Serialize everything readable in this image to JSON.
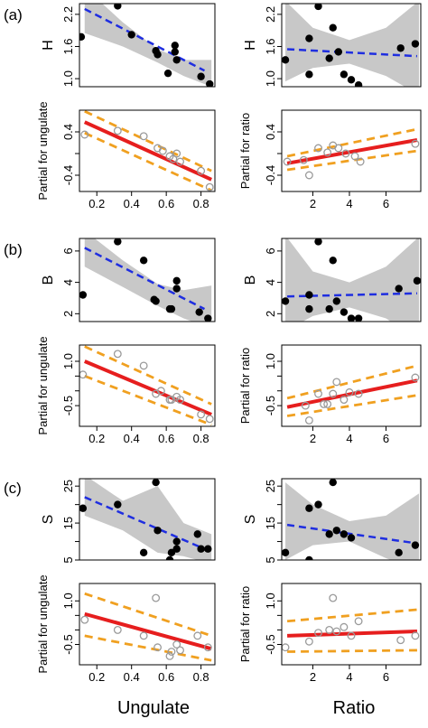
{
  "figure": {
    "panel_labels": [
      "(a)",
      "(b)",
      "(c)"
    ],
    "xlabels": [
      "Ungulate",
      "Ratio"
    ]
  },
  "chart_data": [
    {
      "type": "scatter",
      "panel": "(a)",
      "row": "top",
      "col": "ungulate",
      "ylabel": "H",
      "xlim": [
        0.1,
        0.88
      ],
      "ylim": [
        0.85,
        2.4
      ],
      "yticks": [
        1.0,
        1.6,
        2.2
      ],
      "ytick_labels": [
        "1.0",
        "1.6",
        "2.2"
      ],
      "points": [
        [
          0.11,
          1.78
        ],
        [
          0.32,
          2.36
        ],
        [
          0.4,
          1.82
        ],
        [
          0.54,
          1.52
        ],
        [
          0.55,
          1.45
        ],
        [
          0.61,
          1.1
        ],
        [
          0.65,
          1.62
        ],
        [
          0.65,
          1.5
        ],
        [
          0.66,
          1.35
        ],
        [
          0.8,
          1.04
        ],
        [
          0.85,
          0.9
        ]
      ],
      "fit": [
        [
          0.13,
          2.3
        ],
        [
          0.82,
          1.15
        ]
      ],
      "band_upper": [
        [
          0.13,
          2.7
        ],
        [
          0.35,
          2.05
        ],
        [
          0.55,
          1.55
        ],
        [
          0.7,
          1.35
        ],
        [
          0.86,
          1.35
        ]
      ],
      "band_lower": [
        [
          0.13,
          1.85
        ],
        [
          0.35,
          1.6
        ],
        [
          0.55,
          1.3
        ],
        [
          0.7,
          1.05
        ],
        [
          0.86,
          0.85
        ]
      ]
    },
    {
      "type": "scatter",
      "panel": "(a)",
      "row": "top",
      "col": "ratio",
      "ylabel": "H",
      "xlim": [
        0.3,
        7.9
      ],
      "ylim": [
        0.85,
        2.4
      ],
      "yticks": [
        1.0,
        1.6,
        2.2
      ],
      "ytick_labels": [
        "1.0",
        "1.6",
        "2.2"
      ],
      "points": [
        [
          0.5,
          1.35
        ],
        [
          1.8,
          1.75
        ],
        [
          1.8,
          1.08
        ],
        [
          2.3,
          2.35
        ],
        [
          2.9,
          1.38
        ],
        [
          3.1,
          1.95
        ],
        [
          3.4,
          1.5
        ],
        [
          3.7,
          1.08
        ],
        [
          4.1,
          0.98
        ],
        [
          4.5,
          0.88
        ],
        [
          6.8,
          1.57
        ],
        [
          7.6,
          1.65
        ]
      ],
      "fit": [
        [
          0.6,
          1.55
        ],
        [
          7.7,
          1.42
        ]
      ],
      "band_upper": [
        [
          0.5,
          2.45
        ],
        [
          2.0,
          1.95
        ],
        [
          4.0,
          1.72
        ],
        [
          6.0,
          1.95
        ],
        [
          7.8,
          2.45
        ]
      ],
      "band_lower": [
        [
          0.5,
          0.95
        ],
        [
          2.0,
          1.2
        ],
        [
          4.0,
          1.28
        ],
        [
          6.0,
          1.05
        ],
        [
          7.8,
          0.7
        ]
      ]
    },
    {
      "type": "line",
      "panel": "(a)",
      "row": "bottom",
      "col": "ungulate",
      "ylabel": "Partial for ungulate",
      "xlim": [
        0.1,
        0.88
      ],
      "ylim": [
        -0.7,
        0.8
      ],
      "yticks": [
        -0.4,
        0.0,
        0.4
      ],
      "ytick_labels": [
        "-0.4",
        "",
        "0.4"
      ],
      "xticks": [
        0.2,
        0.4,
        0.6,
        0.8
      ],
      "xtick_labels": [
        "0.2",
        "0.4",
        "0.6",
        "0.8"
      ],
      "points": [
        [
          0.13,
          0.35
        ],
        [
          0.32,
          0.42
        ],
        [
          0.47,
          0.32
        ],
        [
          0.55,
          0.1
        ],
        [
          0.58,
          0.05
        ],
        [
          0.62,
          -0.05
        ],
        [
          0.64,
          -0.1
        ],
        [
          0.66,
          0.0
        ],
        [
          0.68,
          -0.15
        ],
        [
          0.8,
          -0.32
        ],
        [
          0.85,
          -0.62
        ]
      ],
      "fit": [
        [
          0.13,
          0.58
        ],
        [
          0.86,
          -0.48
        ]
      ],
      "ci_upper": [
        [
          0.13,
          0.78
        ],
        [
          0.86,
          -0.32
        ]
      ],
      "ci_lower": [
        [
          0.13,
          0.38
        ],
        [
          0.86,
          -0.68
        ]
      ]
    },
    {
      "type": "line",
      "panel": "(a)",
      "row": "bottom",
      "col": "ratio",
      "ylabel": "Partial for ratio",
      "xlim": [
        0.3,
        7.9
      ],
      "ylim": [
        -0.7,
        0.8
      ],
      "yticks": [
        -0.4,
        0.0,
        0.4
      ],
      "ytick_labels": [
        "-0.4",
        "",
        "0.4"
      ],
      "xticks": [
        2,
        4,
        6
      ],
      "xtick_labels": [
        "2",
        "4",
        "6"
      ],
      "points": [
        [
          0.6,
          -0.15
        ],
        [
          1.5,
          -0.12
        ],
        [
          1.8,
          -0.4
        ],
        [
          2.3,
          0.1
        ],
        [
          2.8,
          0.02
        ],
        [
          3.1,
          0.15
        ],
        [
          3.4,
          0.1
        ],
        [
          3.8,
          0.0
        ],
        [
          4.3,
          -0.05
        ],
        [
          4.6,
          -0.15
        ],
        [
          7.6,
          0.18
        ]
      ],
      "fit": [
        [
          0.6,
          -0.18
        ],
        [
          7.7,
          0.25
        ]
      ],
      "ci_upper": [
        [
          0.6,
          -0.05
        ],
        [
          7.7,
          0.45
        ]
      ],
      "ci_lower": [
        [
          0.6,
          -0.3
        ],
        [
          7.7,
          0.05
        ]
      ]
    },
    {
      "type": "scatter",
      "panel": "(b)",
      "row": "top",
      "col": "ungulate",
      "ylabel": "B",
      "xlim": [
        0.1,
        0.88
      ],
      "ylim": [
        1.5,
        6.8
      ],
      "yticks": [
        2,
        4,
        6
      ],
      "ytick_labels": [
        "2",
        "4",
        "6"
      ],
      "points": [
        [
          0.12,
          3.2
        ],
        [
          0.32,
          6.6
        ],
        [
          0.47,
          5.4
        ],
        [
          0.53,
          2.9
        ],
        [
          0.54,
          2.8
        ],
        [
          0.62,
          2.3
        ],
        [
          0.63,
          2.3
        ],
        [
          0.66,
          4.1
        ],
        [
          0.66,
          3.6
        ],
        [
          0.79,
          2.1
        ],
        [
          0.84,
          1.7
        ]
      ],
      "fit": [
        [
          0.13,
          6.2
        ],
        [
          0.82,
          2.3
        ]
      ],
      "band_upper": [
        [
          0.13,
          7.3
        ],
        [
          0.35,
          5.4
        ],
        [
          0.55,
          3.9
        ],
        [
          0.7,
          3.5
        ],
        [
          0.86,
          3.8
        ]
      ],
      "band_lower": [
        [
          0.13,
          5.0
        ],
        [
          0.35,
          3.7
        ],
        [
          0.55,
          2.5
        ],
        [
          0.7,
          1.7
        ],
        [
          0.86,
          1.05
        ]
      ]
    },
    {
      "type": "scatter",
      "panel": "(b)",
      "row": "top",
      "col": "ratio",
      "ylabel": "B",
      "xlim": [
        0.3,
        7.9
      ],
      "ylim": [
        1.5,
        6.8
      ],
      "yticks": [
        2,
        4,
        6
      ],
      "ytick_labels": [
        "2",
        "4",
        "6"
      ],
      "points": [
        [
          0.5,
          2.8
        ],
        [
          1.8,
          3.2
        ],
        [
          1.8,
          2.3
        ],
        [
          2.3,
          6.6
        ],
        [
          2.9,
          2.3
        ],
        [
          3.1,
          5.4
        ],
        [
          3.3,
          2.8
        ],
        [
          3.7,
          2.1
        ],
        [
          4.1,
          1.7
        ],
        [
          4.5,
          1.7
        ],
        [
          6.7,
          3.6
        ],
        [
          7.7,
          4.1
        ]
      ],
      "fit": [
        [
          0.6,
          3.1
        ],
        [
          7.7,
          3.3
        ]
      ],
      "band_upper": [
        [
          0.5,
          7.0
        ],
        [
          2.0,
          4.7
        ],
        [
          4.0,
          4.0
        ],
        [
          6.0,
          5.0
        ],
        [
          7.8,
          6.9
        ]
      ],
      "band_lower": [
        [
          0.5,
          0.9
        ],
        [
          2.0,
          1.85
        ],
        [
          4.0,
          2.4
        ],
        [
          6.0,
          1.7
        ],
        [
          7.8,
          0.3
        ]
      ]
    },
    {
      "type": "line",
      "panel": "(b)",
      "row": "bottom",
      "col": "ungulate",
      "ylabel": "Partial for ungulate",
      "xlim": [
        0.1,
        0.88
      ],
      "ylim": [
        -1.2,
        1.55
      ],
      "yticks": [
        -0.5,
        0.0,
        0.5,
        1.0
      ],
      "ytick_labels": [
        "-0.5",
        "",
        "",
        "1.0"
      ],
      "xticks": [
        0.2,
        0.4,
        0.6,
        0.8
      ],
      "xtick_labels": [
        "0.2",
        "0.4",
        "0.6",
        "0.8"
      ],
      "points": [
        [
          0.12,
          0.55
        ],
        [
          0.32,
          1.25
        ],
        [
          0.47,
          0.85
        ],
        [
          0.54,
          -0.1
        ],
        [
          0.57,
          0.0
        ],
        [
          0.62,
          -0.3
        ],
        [
          0.63,
          -0.3
        ],
        [
          0.66,
          -0.2
        ],
        [
          0.68,
          -0.3
        ],
        [
          0.8,
          -0.8
        ],
        [
          0.85,
          -0.95
        ]
      ],
      "fit": [
        [
          0.13,
          1.0
        ],
        [
          0.86,
          -0.8
        ]
      ],
      "ci_upper": [
        [
          0.13,
          1.5
        ],
        [
          0.86,
          -0.45
        ]
      ],
      "ci_lower": [
        [
          0.13,
          0.5
        ],
        [
          0.86,
          -1.15
        ]
      ]
    },
    {
      "type": "line",
      "panel": "(b)",
      "row": "bottom",
      "col": "ratio",
      "ylabel": "Partial for ratio",
      "xlim": [
        0.3,
        7.9
      ],
      "ylim": [
        -1.2,
        1.55
      ],
      "yticks": [
        -0.5,
        0.0,
        0.5,
        1.0
      ],
      "ytick_labels": [
        "-0.5",
        "",
        "",
        "1.0"
      ],
      "xticks": [
        2,
        4,
        6
      ],
      "xtick_labels": [
        "2",
        "4",
        "6"
      ],
      "points": [
        [
          1.6,
          -0.5
        ],
        [
          1.8,
          -1.0
        ],
        [
          2.3,
          -0.1
        ],
        [
          2.6,
          -0.45
        ],
        [
          2.8,
          -0.45
        ],
        [
          3.1,
          -0.1
        ],
        [
          3.3,
          0.3
        ],
        [
          3.7,
          -0.3
        ],
        [
          4.0,
          -0.05
        ],
        [
          4.5,
          -0.1
        ],
        [
          7.6,
          0.45
        ]
      ],
      "fit": [
        [
          0.6,
          -0.55
        ],
        [
          7.7,
          0.35
        ]
      ],
      "ci_upper": [
        [
          0.6,
          -0.25
        ],
        [
          7.7,
          0.85
        ]
      ],
      "ci_lower": [
        [
          0.6,
          -0.85
        ],
        [
          7.7,
          -0.15
        ]
      ]
    },
    {
      "type": "scatter",
      "panel": "(c)",
      "row": "top",
      "col": "ungulate",
      "ylabel": "S",
      "xlim": [
        0.1,
        0.88
      ],
      "ylim": [
        5,
        27
      ],
      "yticks": [
        5,
        10,
        15,
        20,
        25
      ],
      "ytick_labels": [
        "5",
        "",
        "15",
        "",
        "25"
      ],
      "points": [
        [
          0.12,
          19.0
        ],
        [
          0.32,
          20.0
        ],
        [
          0.47,
          7.0
        ],
        [
          0.54,
          26.0
        ],
        [
          0.55,
          13.0
        ],
        [
          0.62,
          5.0
        ],
        [
          0.63,
          7.0
        ],
        [
          0.66,
          10.0
        ],
        [
          0.66,
          8.0
        ],
        [
          0.78,
          12.0
        ],
        [
          0.8,
          8.0
        ],
        [
          0.84,
          8.0
        ]
      ],
      "fit": [
        [
          0.13,
          22.0
        ],
        [
          0.82,
          8.0
        ]
      ],
      "band_upper": [
        [
          0.13,
          28.0
        ],
        [
          0.35,
          21.0
        ],
        [
          0.55,
          25.0
        ],
        [
          0.7,
          15.0
        ],
        [
          0.86,
          12.0
        ]
      ],
      "band_lower": [
        [
          0.13,
          17.0
        ],
        [
          0.35,
          13.0
        ],
        [
          0.55,
          7.0
        ],
        [
          0.7,
          6.0
        ],
        [
          0.86,
          4.0
        ]
      ]
    },
    {
      "type": "scatter",
      "panel": "(c)",
      "row": "top",
      "col": "ratio",
      "ylabel": "S",
      "xlim": [
        0.3,
        7.9
      ],
      "ylim": [
        5,
        27
      ],
      "yticks": [
        5,
        10,
        15,
        20,
        25
      ],
      "ytick_labels": [
        "5",
        "",
        "15",
        "",
        "25"
      ],
      "points": [
        [
          0.5,
          7.0
        ],
        [
          1.8,
          5.0
        ],
        [
          1.8,
          19.0
        ],
        [
          2.3,
          20.0
        ],
        [
          2.9,
          12.0
        ],
        [
          3.1,
          26.0
        ],
        [
          3.3,
          13.0
        ],
        [
          3.7,
          12.0
        ],
        [
          4.1,
          11.0
        ],
        [
          6.7,
          7.0
        ],
        [
          7.6,
          9.0
        ]
      ],
      "fit": [
        [
          0.6,
          14.5
        ],
        [
          7.7,
          9.5
        ]
      ],
      "band_upper": [
        [
          0.5,
          26.0
        ],
        [
          2.0,
          20.0
        ],
        [
          4.0,
          15.5
        ],
        [
          6.0,
          17.0
        ],
        [
          7.8,
          23.0
        ]
      ],
      "band_lower": [
        [
          0.5,
          5.0
        ],
        [
          2.0,
          9.0
        ],
        [
          4.0,
          10.0
        ],
        [
          6.0,
          5.5
        ],
        [
          7.8,
          2.0
        ]
      ]
    },
    {
      "type": "line",
      "panel": "(c)",
      "row": "bottom",
      "col": "ungulate",
      "ylabel": "Partial for ungulate",
      "xlim": [
        0.1,
        0.88
      ],
      "ylim": [
        -1.2,
        1.6
      ],
      "yticks": [
        -0.5,
        0.0,
        0.5,
        1.0
      ],
      "ytick_labels": [
        "-0.5",
        "",
        "",
        "1.0"
      ],
      "xticks": [
        0.2,
        0.4,
        0.6,
        0.8
      ],
      "xtick_labels": [
        "0.2",
        "0.4",
        "0.6",
        "0.8"
      ],
      "points": [
        [
          0.13,
          0.35
        ],
        [
          0.32,
          0.0
        ],
        [
          0.47,
          -0.2
        ],
        [
          0.54,
          1.1
        ],
        [
          0.55,
          -0.6
        ],
        [
          0.62,
          -0.9
        ],
        [
          0.63,
          -0.75
        ],
        [
          0.66,
          -0.5
        ],
        [
          0.68,
          -0.7
        ],
        [
          0.78,
          -0.2
        ],
        [
          0.84,
          -0.6
        ]
      ],
      "fit": [
        [
          0.13,
          0.55
        ],
        [
          0.86,
          -0.65
        ]
      ],
      "ci_upper": [
        [
          0.13,
          1.25
        ],
        [
          0.86,
          -0.2
        ]
      ],
      "ci_lower": [
        [
          0.13,
          -0.2
        ],
        [
          0.86,
          -1.05
        ]
      ]
    },
    {
      "type": "line",
      "panel": "(c)",
      "row": "bottom",
      "col": "ratio",
      "ylabel": "Partial for ratio",
      "xlim": [
        0.3,
        7.9
      ],
      "ylim": [
        -1.2,
        1.6
      ],
      "yticks": [
        -0.5,
        0.0,
        0.5,
        1.0
      ],
      "ytick_labels": [
        "-0.5",
        "",
        "",
        "1.0"
      ],
      "xticks": [
        2,
        4,
        6
      ],
      "xtick_labels": [
        "2",
        "4",
        "6"
      ],
      "points": [
        [
          0.5,
          -0.6
        ],
        [
          1.8,
          -0.4
        ],
        [
          2.3,
          -0.1
        ],
        [
          2.9,
          0.0
        ],
        [
          3.1,
          1.1
        ],
        [
          3.3,
          -0.05
        ],
        [
          3.7,
          0.1
        ],
        [
          4.1,
          -0.2
        ],
        [
          4.5,
          0.3
        ],
        [
          6.8,
          -0.35
        ],
        [
          7.6,
          -0.2
        ]
      ],
      "fit": [
        [
          0.6,
          -0.2
        ],
        [
          7.7,
          -0.05
        ]
      ],
      "ci_upper": [
        [
          0.6,
          0.3
        ],
        [
          7.7,
          0.7
        ]
      ],
      "ci_lower": [
        [
          0.6,
          -0.75
        ],
        [
          7.7,
          -0.7
        ]
      ]
    }
  ]
}
